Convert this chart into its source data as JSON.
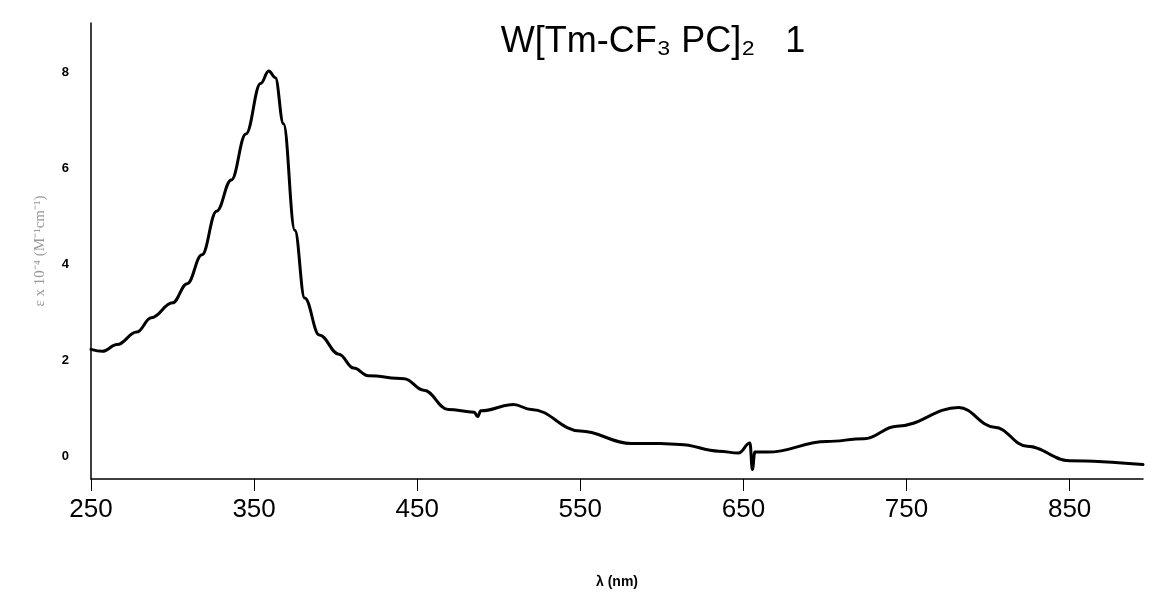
{
  "chart_data": {
    "type": "line",
    "title": "W[Tm-CF₃ PC]₂   1",
    "xlabel": "λ (nm)",
    "ylabel": "ε x 10⁻⁴ (M⁻¹cm⁻¹)",
    "xlim": [
      250,
      895
    ],
    "xticks": [
      250,
      350,
      450,
      550,
      650,
      750,
      850
    ],
    "ylim": [
      -0.5,
      9
    ],
    "yticks": [
      0,
      2,
      4,
      6,
      8
    ],
    "marker": "none",
    "line_style": "solid",
    "series": [
      {
        "color": "#000000",
        "x": [
          250,
          257,
          266,
          278,
          287,
          300,
          309,
          318,
          327,
          336,
          345,
          354,
          359,
          363,
          368,
          375,
          381,
          390,
          402,
          411,
          420,
          442,
          454,
          469,
          485,
          487,
          489,
          509,
          520,
          550,
          581,
          599,
          611,
          635,
          647,
          654,
          655.5,
          657,
          665,
          701,
          724,
          744,
          782,
          804,
          824,
          850,
          895
        ],
        "values": [
          2.2,
          2.16,
          2.3,
          2.56,
          2.86,
          3.17,
          3.57,
          4.17,
          5.08,
          5.73,
          6.69,
          7.74,
          8.0,
          7.86,
          6.9,
          4.68,
          3.27,
          2.5,
          2.1,
          1.81,
          1.65,
          1.59,
          1.35,
          0.95,
          0.89,
          0.8,
          0.92,
          1.05,
          0.95,
          0.5,
          0.24,
          0.24,
          0.22,
          0.08,
          0.04,
          0.25,
          -0.3,
          0.06,
          0.06,
          0.28,
          0.34,
          0.6,
          0.99,
          0.58,
          0.18,
          -0.12,
          -0.2
        ]
      }
    ]
  }
}
